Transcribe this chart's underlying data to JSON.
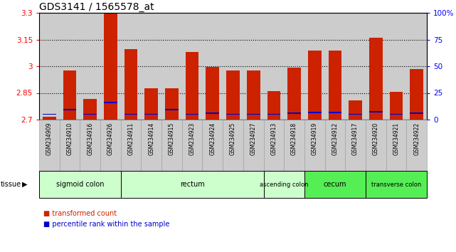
{
  "title": "GDS3141 / 1565578_at",
  "samples": [
    "GSM234909",
    "GSM234910",
    "GSM234916",
    "GSM234926",
    "GSM234911",
    "GSM234914",
    "GSM234915",
    "GSM234923",
    "GSM234924",
    "GSM234925",
    "GSM234927",
    "GSM234913",
    "GSM234918",
    "GSM234919",
    "GSM234912",
    "GSM234917",
    "GSM234920",
    "GSM234921",
    "GSM234922"
  ],
  "red_values": [
    2.715,
    2.975,
    2.815,
    3.3,
    3.095,
    2.875,
    2.875,
    3.08,
    2.995,
    2.975,
    2.975,
    2.86,
    2.99,
    3.09,
    3.09,
    2.81,
    3.16,
    2.855,
    2.985
  ],
  "blue_values": [
    2.73,
    2.755,
    2.73,
    2.795,
    2.73,
    2.73,
    2.755,
    2.73,
    2.735,
    2.73,
    2.73,
    2.73,
    2.735,
    2.74,
    2.74,
    2.73,
    2.745,
    2.73,
    2.735
  ],
  "ymin": 2.7,
  "ymax": 3.3,
  "yticks": [
    2.7,
    2.85,
    3.0,
    3.15,
    3.3
  ],
  "ytick_labels": [
    "2.7",
    "2.85",
    "3",
    "3.15",
    "3.3"
  ],
  "tissue_groups": [
    {
      "label": "sigmoid colon",
      "start": 0,
      "end": 4,
      "color": "#ccffcc"
    },
    {
      "label": "rectum",
      "start": 4,
      "end": 11,
      "color": "#ccffcc"
    },
    {
      "label": "ascending colon",
      "start": 11,
      "end": 13,
      "color": "#ccffcc"
    },
    {
      "label": "cecum",
      "start": 13,
      "end": 16,
      "color": "#55ee55"
    },
    {
      "label": "transverse colon",
      "start": 16,
      "end": 19,
      "color": "#55ee55"
    }
  ],
  "bar_color": "#cc2200",
  "blue_color": "#0000cc",
  "bg_color": "#cccccc",
  "title_fontsize": 10
}
